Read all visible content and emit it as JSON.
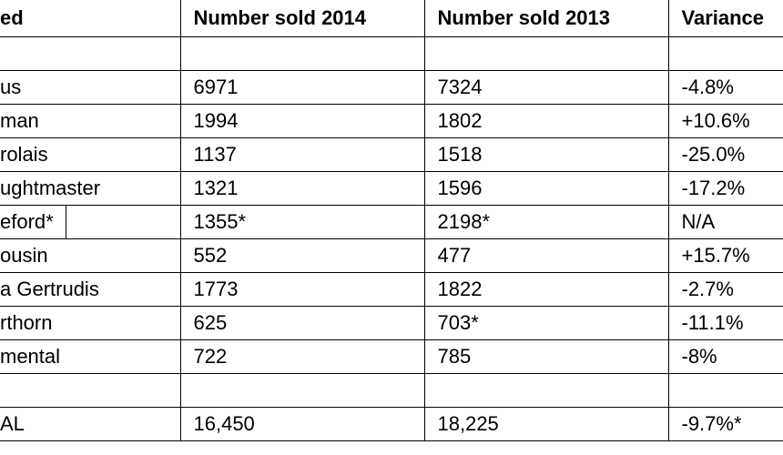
{
  "table": {
    "header": [
      "ed",
      "Number sold 2014",
      "Number sold 2013",
      "Variance"
    ],
    "rows": [
      [
        "us",
        "6971",
        "7324",
        "-4.8%"
      ],
      [
        "man",
        "1994",
        "1802",
        "+10.6%"
      ],
      [
        "rolais",
        "1137",
        "1518",
        "-25.0%"
      ],
      [
        "ughtmaster",
        "1321",
        "1596",
        "-17.2%"
      ],
      [
        "eford*",
        "1355*",
        "2198*",
        "N/A"
      ],
      [
        "ousin",
        "552",
        "477",
        "+15.7%"
      ],
      [
        "a Gertrudis",
        "1773",
        "1822",
        "-2.7%"
      ],
      [
        "rthorn",
        "625",
        "703*",
        "-11.1%"
      ],
      [
        "mental",
        "722",
        "785",
        "-8%"
      ]
    ],
    "total": [
      "AL",
      "16,450",
      "18,225",
      "-9.7%*"
    ]
  }
}
